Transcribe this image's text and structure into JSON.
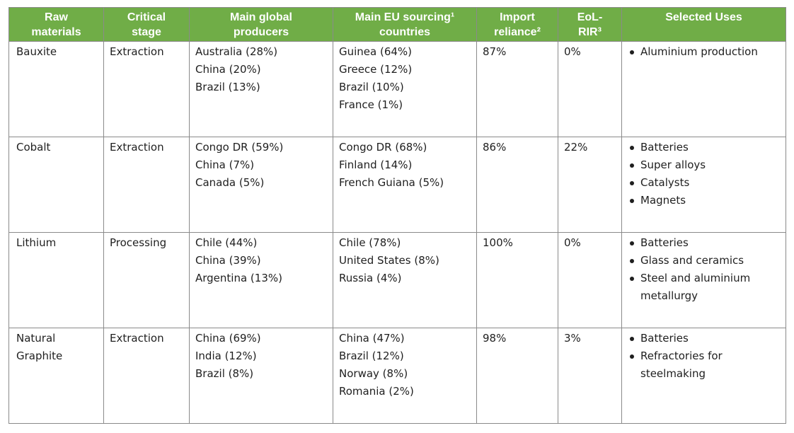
{
  "table": {
    "headers": [
      [
        "Raw",
        "materials"
      ],
      [
        "Critical",
        "stage"
      ],
      [
        "Main global",
        "producers"
      ],
      [
        "Main EU sourcing¹",
        "countries"
      ],
      [
        "Import",
        "reliance²"
      ],
      [
        "EoL-",
        "RIR³"
      ],
      [
        "Selected Uses"
      ]
    ],
    "rows": [
      {
        "material": [
          "Bauxite"
        ],
        "stage": "Extraction",
        "global_producers": [
          "Australia (28%)",
          "China (20%)",
          "Brazil (13%)"
        ],
        "eu_sourcing": [
          "Guinea (64%)",
          "Greece (12%)",
          "Brazil (10%)",
          "France (1%)"
        ],
        "import_reliance": "87%",
        "eol_rir": "0%",
        "uses": [
          "Aluminium production"
        ]
      },
      {
        "material": [
          "Cobalt"
        ],
        "stage": "Extraction",
        "global_producers": [
          "Congo DR (59%)",
          "China (7%)",
          "Canada (5%)"
        ],
        "eu_sourcing": [
          "Congo DR (68%)",
          "Finland (14%)",
          "French Guiana (5%)"
        ],
        "import_reliance": "86%",
        "eol_rir": "22%",
        "uses": [
          "Batteries",
          "Super alloys",
          "Catalysts",
          "Magnets"
        ]
      },
      {
        "material": [
          "Lithium"
        ],
        "stage": "Processing",
        "global_producers": [
          "Chile (44%)",
          "China (39%)",
          "Argentina (13%)"
        ],
        "eu_sourcing": [
          "Chile (78%)",
          "United States (8%)",
          "Russia (4%)"
        ],
        "import_reliance": "100%",
        "eol_rir": "0%",
        "uses": [
          "Batteries",
          "Glass and ceramics",
          "Steel and aluminium metallurgy"
        ]
      },
      {
        "material": [
          "Natural",
          "Graphite"
        ],
        "stage": "Extraction",
        "global_producers": [
          "China (69%)",
          "India (12%)",
          "Brazil (8%)"
        ],
        "eu_sourcing": [
          "China (47%)",
          "Brazil (12%)",
          "Norway (8%)",
          "Romania (2%)"
        ],
        "import_reliance": "98%",
        "eol_rir": "3%",
        "uses": [
          "Batteries",
          "Refractories for steelmaking"
        ]
      }
    ]
  }
}
